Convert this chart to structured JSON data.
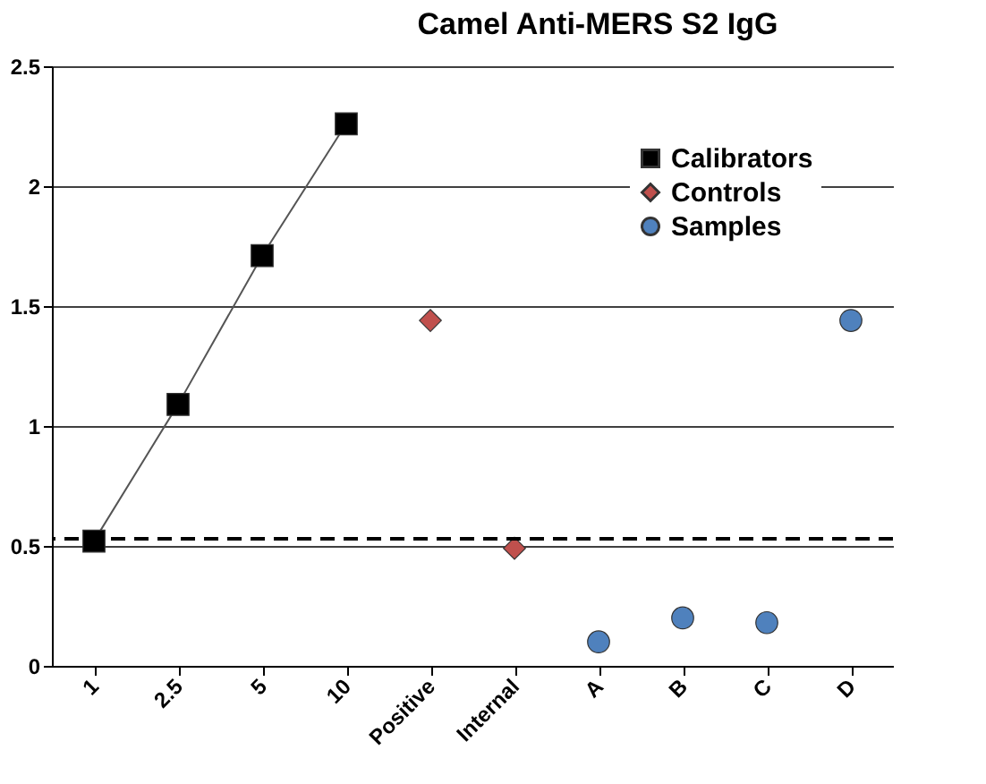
{
  "chart_data": {
    "type": "scatter",
    "title": "Camel Anti-MERS S2 IgG",
    "categories": [
      "1",
      "2.5",
      "5",
      "10",
      "Positive",
      "Internal",
      "A",
      "B",
      "C",
      "D"
    ],
    "series": [
      {
        "name": "Calibrators",
        "type": "line",
        "marker": "square",
        "color": "#000000",
        "values": [
          0.52,
          1.09,
          1.71,
          2.26,
          null,
          null,
          null,
          null,
          null,
          null
        ]
      },
      {
        "name": "Controls",
        "marker": "diamond",
        "color": "#c0504d",
        "values": [
          null,
          null,
          null,
          null,
          1.44,
          0.49,
          null,
          null,
          null,
          null
        ]
      },
      {
        "name": "Samples",
        "marker": "circle",
        "color": "#4f81bd",
        "values": [
          null,
          null,
          null,
          null,
          null,
          null,
          0.1,
          0.2,
          0.18,
          1.44
        ]
      }
    ],
    "ylim": [
      0,
      2.5
    ],
    "yticks": [
      0,
      0.5,
      1,
      1.5,
      2,
      2.5
    ],
    "grid": "y",
    "legend": "top right",
    "ref_lines": [
      {
        "axis": "y",
        "value": 0.53,
        "line_style": "dashed",
        "color": "#000000"
      }
    ]
  }
}
